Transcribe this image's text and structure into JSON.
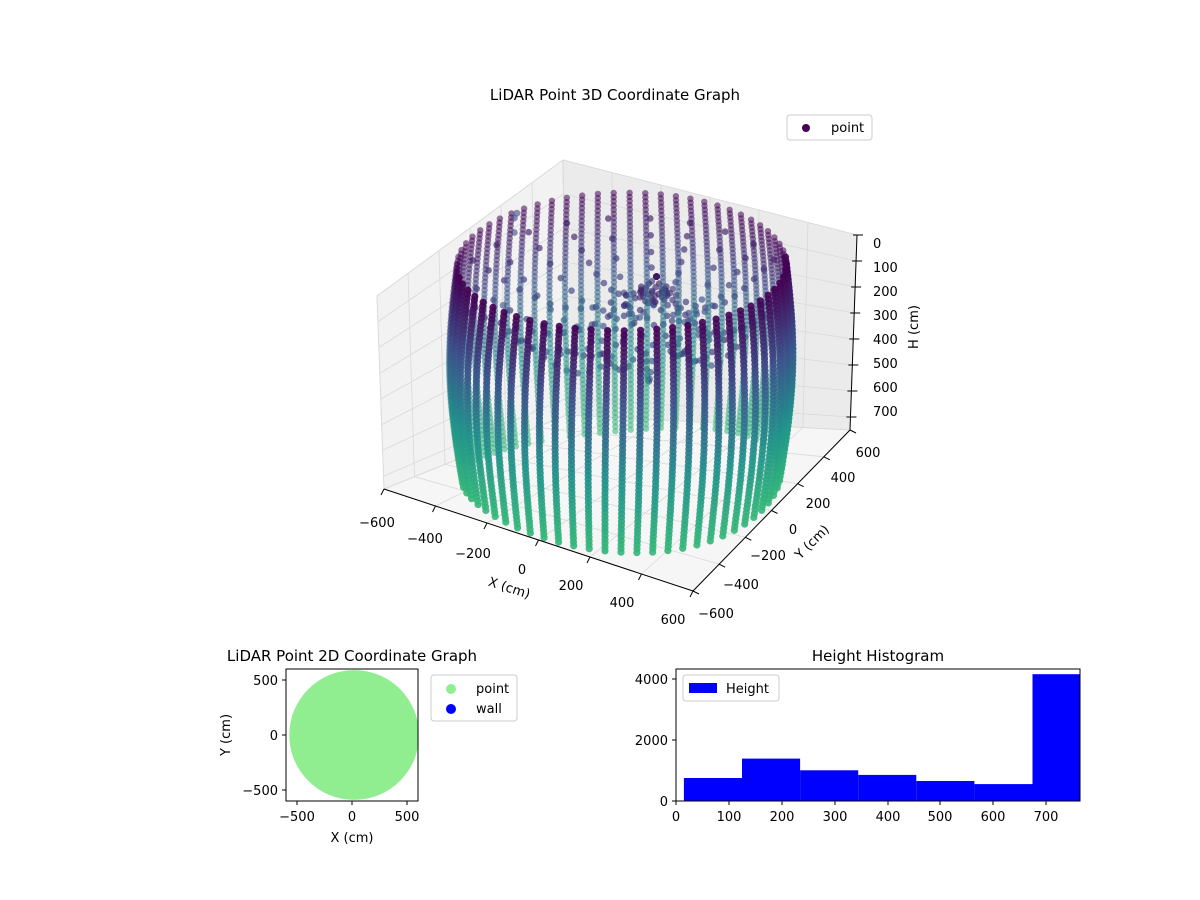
{
  "figure": {
    "background": "#ffffff"
  },
  "chart_data": [
    {
      "type": "scatter3d",
      "title": "LiDAR Point 3D Coordinate Graph",
      "xlabel": "X (cm)",
      "ylabel": "Y (cm)",
      "zlabel": "H (cm)",
      "xlim": [
        -600,
        600
      ],
      "ylim": [
        -600,
        600
      ],
      "zlim": [
        0,
        750
      ],
      "z_inverted": true,
      "xticks": [
        "−600",
        "−400",
        "−200",
        "0",
        "200",
        "400",
        "600"
      ],
      "yticks": [
        "−600",
        "−400",
        "−200",
        "0",
        "200",
        "400",
        "600"
      ],
      "zticks": [
        "0",
        "100",
        "200",
        "300",
        "400",
        "500",
        "600",
        "700"
      ],
      "legend": {
        "label": "point",
        "placement": "top-right"
      },
      "colormap": "viridis",
      "colormap_stops": [
        "#440154",
        "#3b528b",
        "#21918c",
        "#35b779"
      ],
      "grid": true,
      "wall": {
        "shape": "cylinder",
        "radius": 560,
        "height_range": [
          0,
          760
        ],
        "vertical_lines": 64
      },
      "roof": {
        "spokes": 24,
        "center": [
          60,
          120
        ],
        "height_range": [
          0,
          420
        ]
      },
      "outliers": [
        {
          "x": -600,
          "y": 300,
          "h": 60
        },
        {
          "x": -560,
          "y": 220,
          "h": 40
        },
        {
          "x": -500,
          "y": 120,
          "h": 40
        },
        {
          "x": -600,
          "y": 200,
          "h": 320
        }
      ]
    },
    {
      "type": "scatter",
      "title": "LiDAR Point 2D Coordinate Graph",
      "xlabel": "X (cm)",
      "ylabel": "Y (cm)",
      "xlim": [
        -600,
        600
      ],
      "ylim": [
        -600,
        600
      ],
      "xticks": [
        "−500",
        "0",
        "500"
      ],
      "yticks": [
        "500",
        "0",
        "−500"
      ],
      "series": [
        {
          "name": "point",
          "color": "#90ee90",
          "shape": "disc",
          "center": [
            20,
            0
          ],
          "radius": 590
        },
        {
          "name": "wall",
          "color": "#0000ff",
          "points": []
        }
      ],
      "legend": {
        "placement": "outside-right"
      }
    },
    {
      "type": "bar",
      "title": "Height Histogram",
      "xlim": [
        0,
        765
      ],
      "ylim": [
        0,
        4300
      ],
      "xticks": [
        "0",
        "100",
        "200",
        "300",
        "400",
        "500",
        "600",
        "700"
      ],
      "yticks": [
        "0",
        "2000",
        "4000"
      ],
      "series": [
        {
          "name": "Height",
          "color": "#0000ff",
          "bins": [
            {
              "x0": 15,
              "x1": 125,
              "value": 750
            },
            {
              "x0": 125,
              "x1": 235,
              "value": 1380
            },
            {
              "x0": 235,
              "x1": 345,
              "value": 1000
            },
            {
              "x0": 345,
              "x1": 455,
              "value": 850
            },
            {
              "x0": 455,
              "x1": 565,
              "value": 650
            },
            {
              "x0": 565,
              "x1": 675,
              "value": 550
            },
            {
              "x0": 675,
              "x1": 765,
              "value": 4130
            }
          ]
        }
      ],
      "legend": {
        "placement": "upper-left"
      }
    }
  ]
}
